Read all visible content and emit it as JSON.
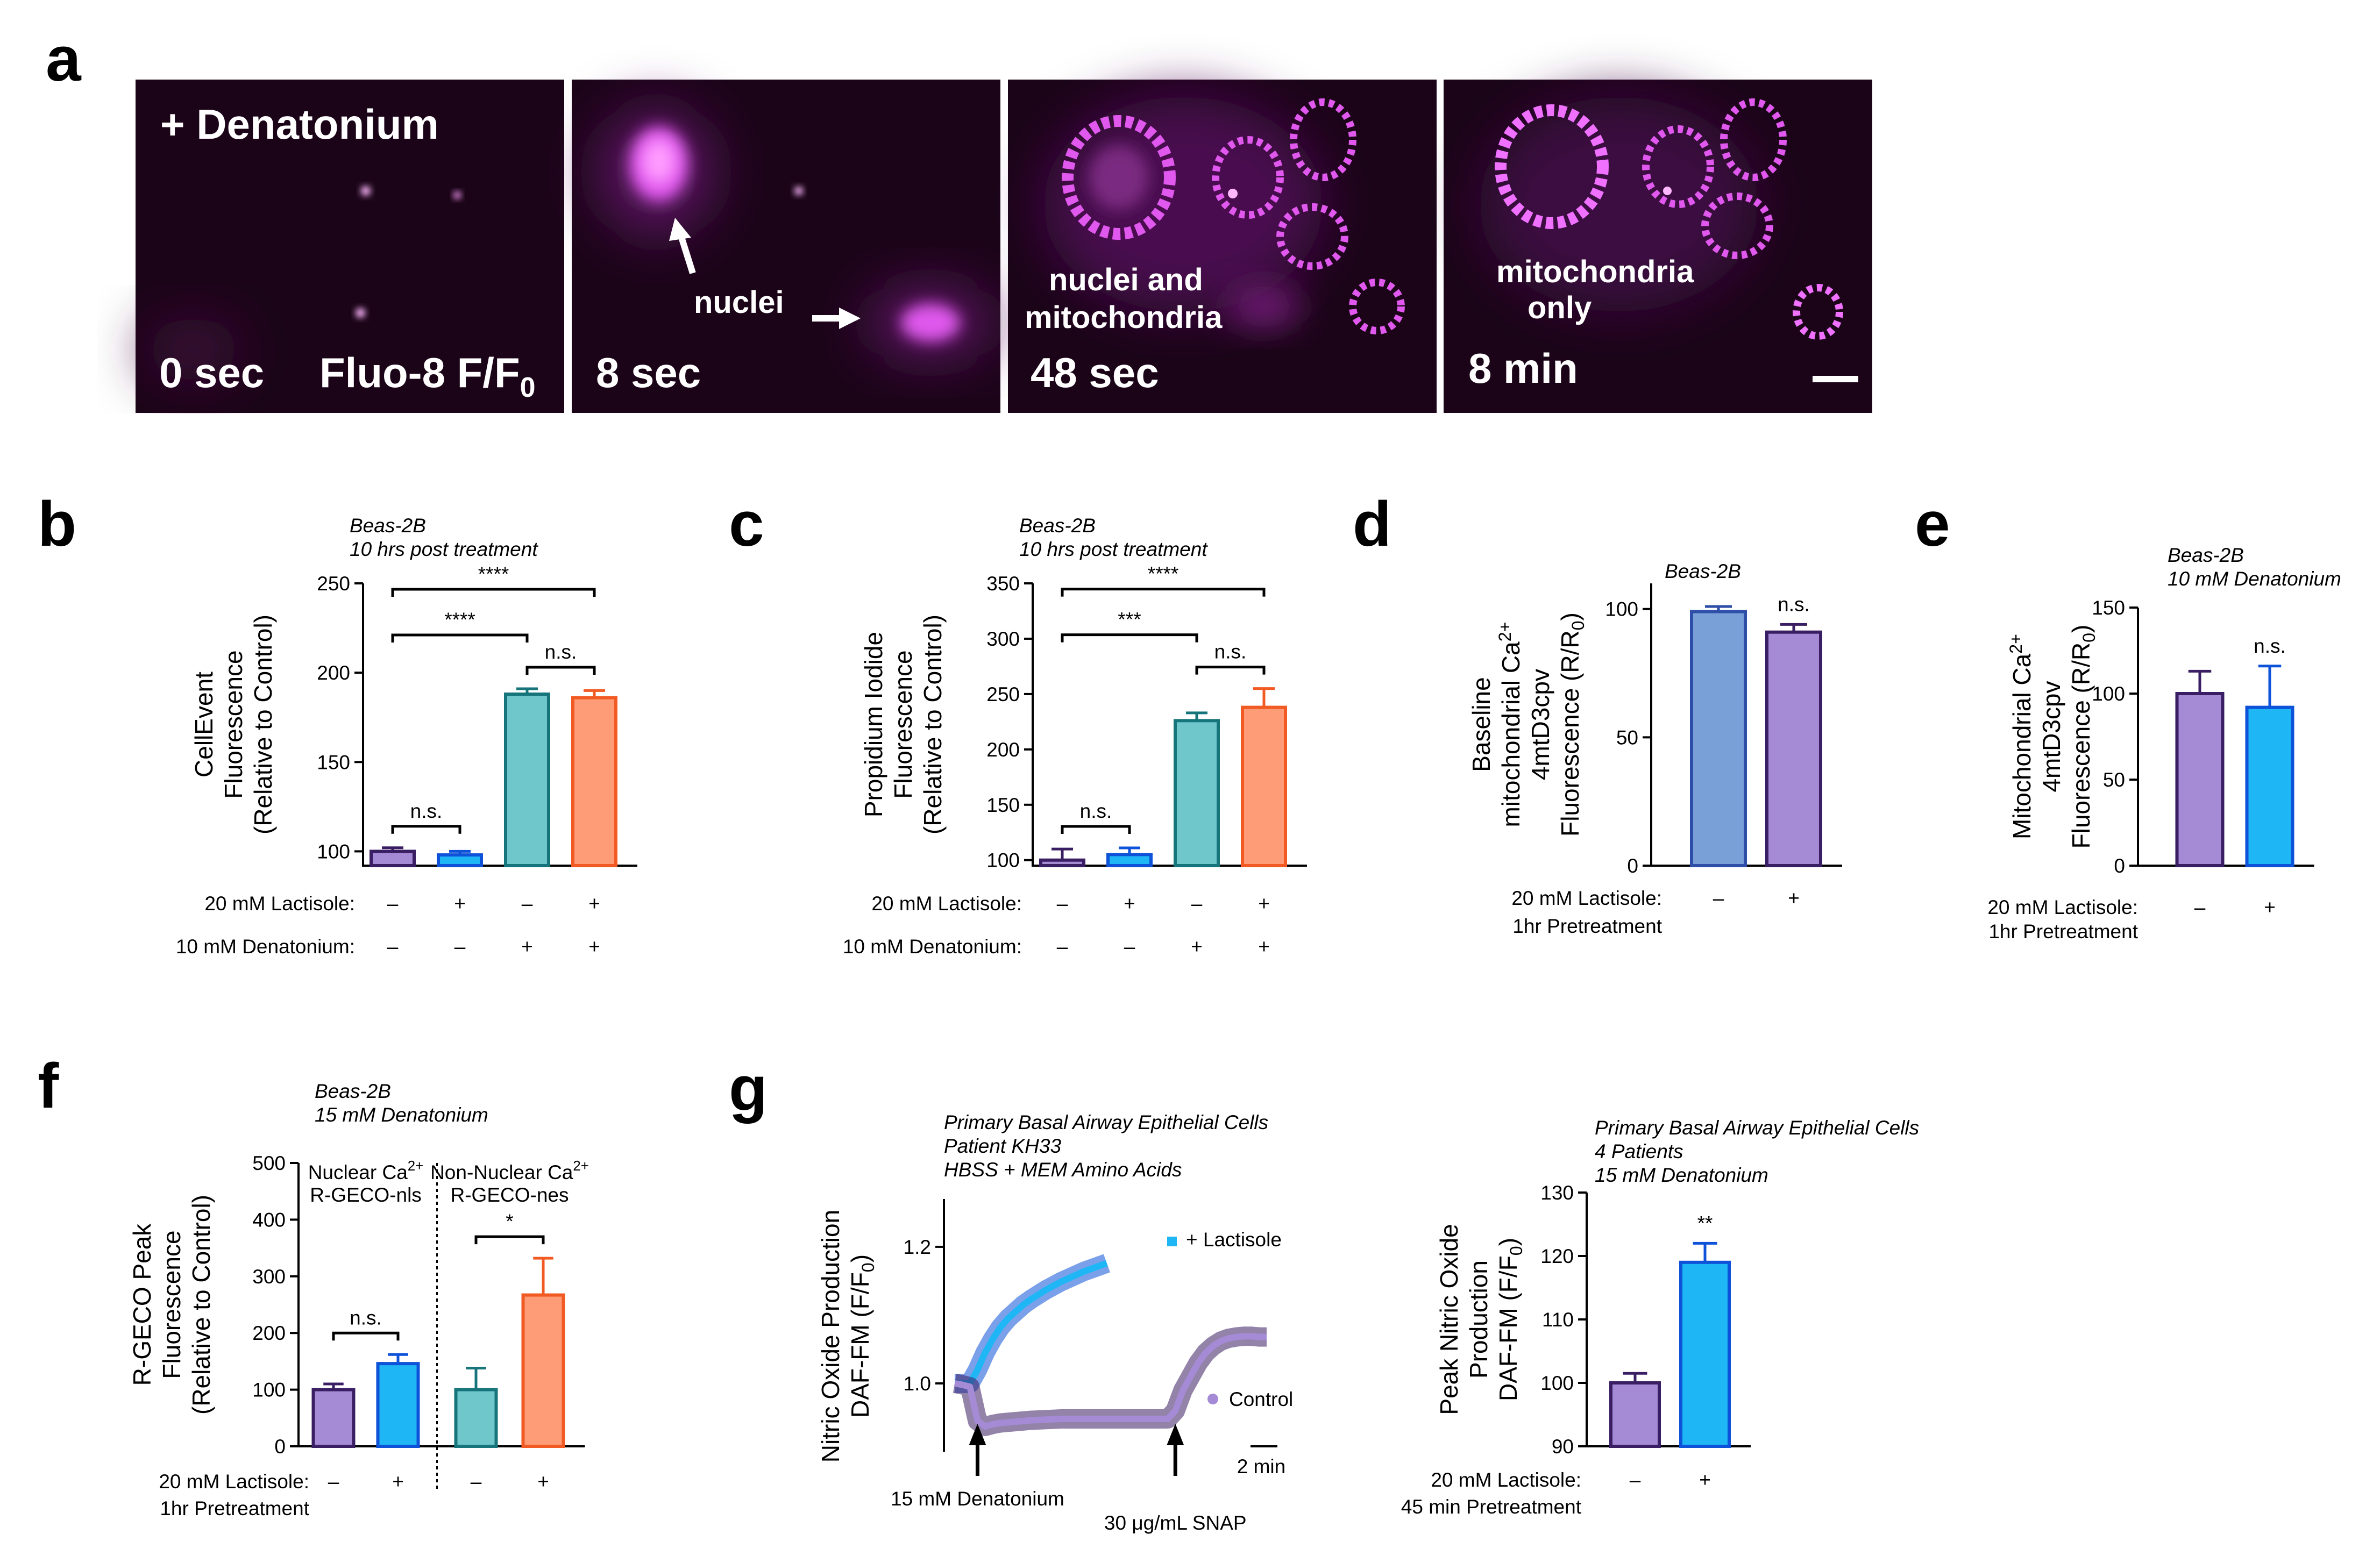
{
  "colors": {
    "purple_fill": "#a58bd6",
    "purple_edge": "#3a1e63",
    "blue_fill": "#1fb6f5",
    "blue_edge": "#0d52d8",
    "teal_fill": "#6fc7cc",
    "teal_edge": "#16757b",
    "orange_fill": "#ff9c78",
    "orange_edge": "#f25a23",
    "steel_fill": "#7aa0d8",
    "steel_edge": "#2f4ea8",
    "magenta": "#e058ee",
    "microscopy_bg": "#1b0418"
  },
  "panels": {
    "a": {
      "letter": "a"
    },
    "b": {
      "letter": "b"
    },
    "c": {
      "letter": "c"
    },
    "d": {
      "letter": "d"
    },
    "e": {
      "letter": "e"
    },
    "f": {
      "letter": "f"
    },
    "g": {
      "letter": "g"
    }
  },
  "panel_a": {
    "treatment": "+ Denatonium",
    "dye": "Fluo-8 F/F",
    "dye_sub": "0",
    "frames": [
      {
        "time": "0 sec",
        "labels": []
      },
      {
        "time": "8 sec",
        "labels": [
          "nuclei"
        ]
      },
      {
        "time": "48 sec",
        "labels": [
          "nuclei and",
          "mitochondria"
        ]
      },
      {
        "time": "8 min",
        "labels": [
          "mitochondria",
          "only"
        ]
      }
    ]
  },
  "chart_data": [
    {
      "panel": "b",
      "type": "bar",
      "annotation": [
        "Beas-2B",
        "10 hrs post treatment"
      ],
      "ylabel": [
        "CellEvent",
        "Fluorescence",
        "(Relative to Control)"
      ],
      "ylim": [
        92,
        250
      ],
      "yticks": [
        100,
        150,
        200,
        250
      ],
      "values": [
        100,
        98,
        188,
        186
      ],
      "errors": [
        2,
        2,
        3,
        4
      ],
      "conditions": [
        {
          "label": "20 mM Lactisole:",
          "values": [
            "–",
            "+",
            "–",
            "+"
          ]
        },
        {
          "label": "10 mM Denatonium:",
          "values": [
            "–",
            "–",
            "+",
            "+"
          ]
        }
      ],
      "brackets": [
        {
          "from": 0,
          "to": 1,
          "text": "n.s."
        },
        {
          "from": 2,
          "to": 3,
          "text": "n.s."
        },
        {
          "from": 0,
          "to": 2,
          "text": "****"
        },
        {
          "from": 0,
          "to": 3,
          "text": "****"
        }
      ]
    },
    {
      "panel": "c",
      "type": "bar",
      "annotation": [
        "Beas-2B",
        "10 hrs post treatment"
      ],
      "ylabel": [
        "Propidium Iodide",
        "Fluorescence",
        "(Relative to Control)"
      ],
      "ylim": [
        95,
        350
      ],
      "yticks": [
        100,
        150,
        200,
        250,
        300,
        350
      ],
      "values": [
        100,
        105,
        226,
        238
      ],
      "errors": [
        10,
        6,
        7,
        17
      ],
      "conditions": [
        {
          "label": "20 mM Lactisole:",
          "values": [
            "–",
            "+",
            "–",
            "+"
          ]
        },
        {
          "label": "10 mM Denatonium:",
          "values": [
            "–",
            "–",
            "+",
            "+"
          ]
        }
      ],
      "brackets": [
        {
          "from": 0,
          "to": 1,
          "text": "n.s."
        },
        {
          "from": 2,
          "to": 3,
          "text": "n.s."
        },
        {
          "from": 0,
          "to": 2,
          "text": "***"
        },
        {
          "from": 0,
          "to": 3,
          "text": "****"
        }
      ]
    },
    {
      "panel": "d",
      "type": "bar",
      "annotation": [
        "Beas-2B"
      ],
      "ylabel": [
        "Baseline",
        "mitochondrial Ca2+",
        "4mtD3cpv",
        "Fluorescence (R/R0)"
      ],
      "ylim": [
        0,
        110
      ],
      "yticks": [
        0,
        50,
        100
      ],
      "values": [
        99,
        91
      ],
      "errors": [
        2,
        3
      ],
      "conditions": [
        {
          "label": "20 mM Lactisole:",
          "values": [
            "–",
            "+"
          ]
        },
        {
          "label": "1hr Pretreatment",
          "values": []
        }
      ],
      "brackets": [
        {
          "over": 1,
          "text": "n.s."
        }
      ]
    },
    {
      "panel": "e",
      "type": "bar",
      "annotation": [
        "Beas-2B",
        "10 mM Denatonium"
      ],
      "ylabel": [
        "Mitochondrial Ca2+",
        "4mtD3cpv",
        "Fluorescence (R/R0)"
      ],
      "ylim": [
        0,
        150
      ],
      "yticks": [
        0,
        50,
        100,
        150
      ],
      "values": [
        100,
        92
      ],
      "errors": [
        13,
        24
      ],
      "conditions": [
        {
          "label": "20 mM Lactisole:",
          "values": [
            "–",
            "+"
          ]
        },
        {
          "label": "1hr Pretreatment",
          "values": []
        }
      ],
      "brackets": [
        {
          "over": 1,
          "text": "n.s."
        }
      ]
    },
    {
      "panel": "f",
      "type": "bar",
      "annotation": [
        "Beas-2B",
        "15 mM Denatonium"
      ],
      "groups": [
        [
          "Nuclear Ca2+",
          "R-GECO-nls"
        ],
        [
          "Non-Nuclear Ca2+",
          "R-GECO-nes"
        ]
      ],
      "ylabel": [
        "R-GECO Peak",
        "Fluorescence",
        "(Relative to Control)"
      ],
      "ylim": [
        0,
        500
      ],
      "yticks": [
        0,
        100,
        200,
        300,
        400,
        500
      ],
      "values": [
        100,
        146,
        100,
        267
      ],
      "errors": [
        10,
        16,
        38,
        65
      ],
      "conditions": [
        {
          "label": "20 mM Lactisole:",
          "values": [
            "–",
            "+",
            "–",
            "+"
          ]
        },
        {
          "label": "1hr Pretreatment",
          "values": []
        }
      ],
      "brackets": [
        {
          "from": 0,
          "to": 1,
          "text": "n.s."
        },
        {
          "from": 2,
          "to": 3,
          "text": "*"
        }
      ]
    },
    {
      "panel": "g_trace",
      "type": "line",
      "annotation": [
        "Primary Basal Airway Epithelial Cells",
        "Patient KH33",
        "HBSS + MEM Amino Acids"
      ],
      "ylabel": [
        "Nitric Oxide Production",
        "DAF-FM (F/F0)"
      ],
      "yticks": [
        1.0,
        1.2
      ],
      "ylim": [
        0.9,
        1.27
      ],
      "time_unit": "min",
      "series": [
        {
          "name": "+ Lactisole",
          "x": [
            0,
            1,
            2,
            3,
            4,
            5,
            6,
            7,
            8,
            9,
            10,
            11,
            12,
            13,
            14,
            15,
            16,
            17,
            18,
            19,
            20
          ],
          "y": [
            1.0,
            1.0,
            1.0,
            1.02,
            1.045,
            1.065,
            1.082,
            1.095,
            1.105,
            1.115,
            1.123,
            1.13,
            1.137,
            1.143,
            1.149,
            1.154,
            1.159,
            1.164,
            1.168,
            1.172,
            1.176
          ]
        },
        {
          "name": "Control",
          "x": [
            0,
            1,
            2,
            3,
            4,
            5,
            6,
            8,
            10,
            12,
            14,
            16,
            18,
            20,
            22,
            24,
            26,
            28,
            29,
            30,
            31,
            32,
            33,
            34,
            35,
            36,
            37,
            38,
            39,
            40,
            41
          ],
          "y": [
            1.0,
            0.998,
            0.995,
            0.945,
            0.937,
            0.94,
            0.942,
            0.944,
            0.946,
            0.947,
            0.948,
            0.948,
            0.948,
            0.948,
            0.948,
            0.948,
            0.948,
            0.948,
            0.96,
            0.99,
            1.01,
            1.03,
            1.045,
            1.055,
            1.062,
            1.066,
            1.068,
            1.069,
            1.069,
            1.068,
            1.068
          ]
        }
      ],
      "events": [
        {
          "label": "15 mM Denatonium",
          "x": 3
        },
        {
          "label": "30 μg/mL SNAP",
          "x": 29
        }
      ],
      "scale_bar": "2 min"
    },
    {
      "panel": "g_bar",
      "type": "bar",
      "annotation": [
        "Primary Basal Airway Epithelial Cells",
        "4 Patients",
        "15 mM Denatonium"
      ],
      "ylabel": [
        "Peak Nitric Oxide",
        "Production",
        "DAF-FM (F/F0)"
      ],
      "ylim": [
        90,
        130
      ],
      "yticks": [
        90,
        100,
        110,
        120,
        130
      ],
      "values": [
        100,
        119
      ],
      "errors": [
        1.5,
        3
      ],
      "conditions": [
        {
          "label": "20 mM Lactisole:",
          "values": [
            "–",
            "+"
          ]
        },
        {
          "label": "45 min Pretreatment",
          "values": []
        }
      ],
      "brackets": [
        {
          "over": 1,
          "text": "**"
        }
      ]
    }
  ]
}
